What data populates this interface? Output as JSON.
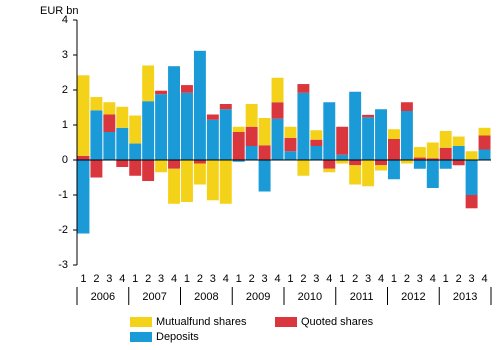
{
  "chart_data": {
    "type": "bar",
    "stacked": true,
    "y_label": "EUR bn",
    "categories": [
      "1",
      "2",
      "3",
      "4",
      "1",
      "2",
      "3",
      "4",
      "1",
      "2",
      "3",
      "4",
      "1",
      "2",
      "3",
      "4",
      "1",
      "2",
      "3",
      "4",
      "1",
      "2",
      "3",
      "4",
      "1",
      "2",
      "3",
      "4",
      "1",
      "2",
      "3",
      "4"
    ],
    "year_labels": [
      "2006",
      "2007",
      "2008",
      "2009",
      "2010",
      "2011",
      "2012",
      "2013"
    ],
    "series": [
      {
        "name": "Mutualfund shares",
        "color": "#f5d21a",
        "values": [
          2.3,
          0.38,
          0.35,
          0.6,
          0.8,
          1.02,
          -0.35,
          -1.0,
          -1.2,
          -0.6,
          -1.15,
          -1.25,
          0.15,
          0.65,
          0.78,
          0.7,
          0.32,
          -0.45,
          0.27,
          -0.1,
          -0.1,
          -0.55,
          -0.75,
          -0.15,
          0.28,
          -0.1,
          0.3,
          0.45,
          0.48,
          0.27,
          0.25,
          0.22
        ]
      },
      {
        "name": "Quoted shares",
        "color": "#d9363e",
        "values": [
          0.12,
          -0.5,
          0.5,
          -0.2,
          -0.45,
          -0.6,
          0.1,
          -0.25,
          0.22,
          -0.1,
          0.15,
          0.15,
          0.8,
          0.55,
          0.42,
          0.47,
          0.38,
          0.25,
          0.18,
          -0.25,
          0.8,
          -0.15,
          0.07,
          -0.15,
          0.6,
          0.25,
          0.07,
          0.05,
          0.35,
          -0.15,
          -0.38,
          0.4
        ]
      },
      {
        "name": "Deposits",
        "color": "#1a9ad6",
        "values": [
          -2.1,
          1.42,
          0.8,
          0.92,
          0.47,
          1.68,
          1.88,
          2.68,
          1.92,
          3.12,
          1.15,
          1.45,
          -0.05,
          0.4,
          -0.9,
          1.18,
          0.25,
          1.92,
          0.4,
          1.65,
          0.15,
          1.95,
          1.22,
          1.45,
          -0.55,
          1.4,
          -0.25,
          -0.8,
          -0.25,
          0.4,
          -1.0,
          0.3
        ]
      }
    ],
    "ylim": [
      -3,
      4
    ],
    "yticks": [
      -3,
      -2,
      -1,
      0,
      1,
      2,
      3,
      4
    ],
    "grid": false,
    "legend": "bottom"
  }
}
